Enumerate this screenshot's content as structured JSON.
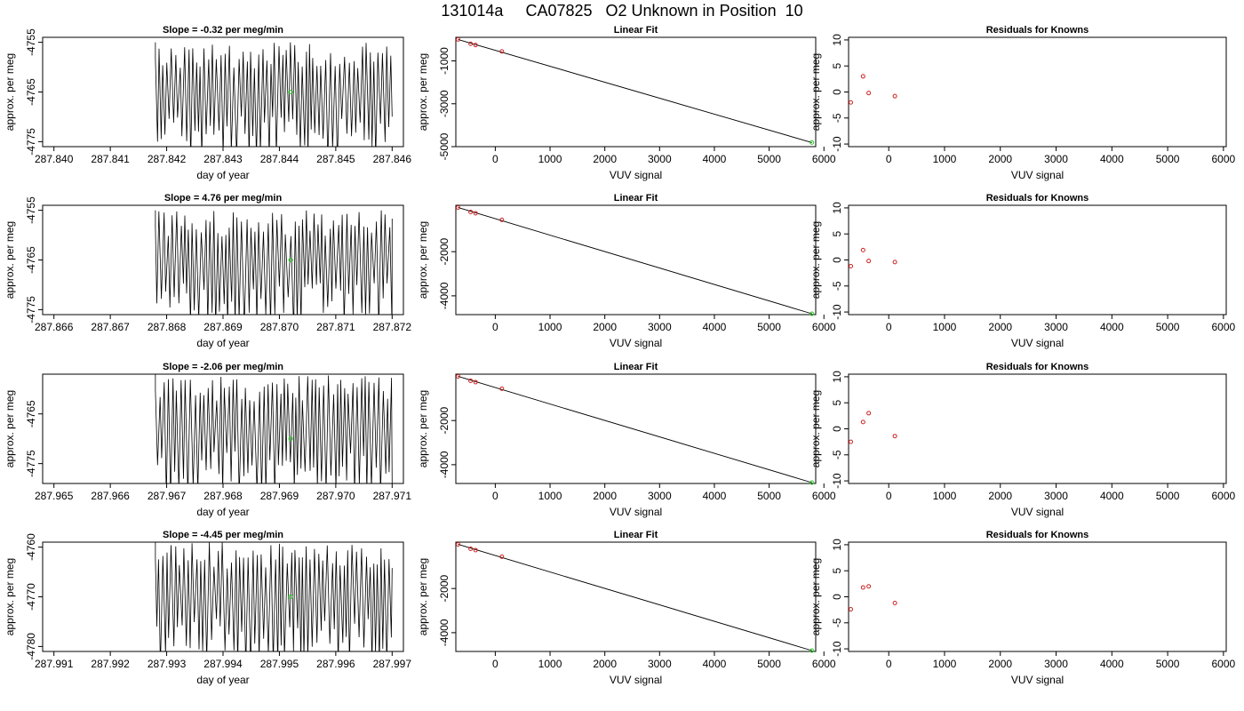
{
  "figure": {
    "title": "131014a     CA07825   O2 Unknown in Position  10"
  },
  "colors": {
    "trace": "#000000",
    "known_points": "#cc2222",
    "unknown_point": "#22cc22",
    "fit_line": "#000000"
  },
  "rows": [
    {
      "time": {
        "title": "Slope =  -0.32  per meg/min",
        "xlabel": "day of year",
        "ylabel": "approx. per meg",
        "xlim": [
          287.8398,
          287.8462
        ],
        "ylim": [
          -4776,
          -4754
        ],
        "xticks": [
          "287.840",
          "287.841",
          "287.842",
          "287.843",
          "287.844",
          "287.845",
          "287.846"
        ],
        "yticks": [
          "-4755",
          "-4765",
          "-4775"
        ],
        "trace_start": 287.8418,
        "trace_end": 287.846,
        "trace_high": -4755,
        "trace_low": -4776,
        "unknown_point": {
          "x": 287.8442,
          "y": -4765
        }
      },
      "fit": {
        "title": "Linear Fit",
        "xlabel": "VUV signal",
        "ylabel": "approx. per meg",
        "xlim": [
          -720,
          5850
        ],
        "ylim": [
          -5000,
          100
        ],
        "xticks": [
          "0",
          "1000",
          "2000",
          "3000",
          "4000",
          "5000",
          "6000"
        ],
        "yticks": [
          "-1000",
          "-3000",
          "-5000"
        ],
        "known_points": [
          {
            "x": -680,
            "y": 0
          },
          {
            "x": -450,
            "y": -200
          },
          {
            "x": -360,
            "y": -260
          },
          {
            "x": 120,
            "y": -560
          }
        ],
        "unknown_point": {
          "x": 5780,
          "y": -4810
        },
        "line": [
          {
            "x": -680,
            "y": 0
          },
          {
            "x": 5780,
            "y": -4810
          }
        ]
      },
      "residuals": {
        "title": "Residuals for Knowns",
        "xlabel": "VUV signal",
        "ylabel": "approx. per meg",
        "xlim": [
          -720,
          6050
        ],
        "ylim": [
          -10.5,
          10.5
        ],
        "xticks": [
          "0",
          "1000",
          "2000",
          "3000",
          "4000",
          "5000",
          "6000"
        ],
        "yticks": [
          "-10",
          "-5",
          "0",
          "5",
          "10"
        ],
        "points": [
          {
            "x": -680,
            "y": -2.0
          },
          {
            "x": -460,
            "y": 3.0
          },
          {
            "x": -360,
            "y": -0.2
          },
          {
            "x": 110,
            "y": -0.8
          }
        ]
      }
    },
    {
      "time": {
        "title": "Slope =  4.76  per meg/min",
        "xlabel": "day of year",
        "ylabel": "approx. per meg",
        "xlim": [
          287.8658,
          287.8722
        ],
        "ylim": [
          -4776,
          -4754
        ],
        "xticks": [
          "287.866",
          "287.867",
          "287.868",
          "287.869",
          "287.870",
          "287.871",
          "287.872"
        ],
        "yticks": [
          "-4755",
          "-4765",
          "-4775"
        ],
        "trace_start": 287.8678,
        "trace_end": 287.872,
        "trace_high": -4755,
        "trace_low": -4776,
        "unknown_point": {
          "x": 287.8702,
          "y": -4765
        }
      },
      "fit": {
        "title": "Linear Fit",
        "xlabel": "VUV signal",
        "ylabel": "approx. per meg",
        "xlim": [
          -720,
          5850
        ],
        "ylim": [
          -4850,
          100
        ],
        "xticks": [
          "0",
          "1000",
          "2000",
          "3000",
          "4000",
          "5000",
          "6000"
        ],
        "yticks": [
          "-2000",
          "-4000"
        ],
        "known_points": [
          {
            "x": -680,
            "y": 0
          },
          {
            "x": -450,
            "y": -200
          },
          {
            "x": -360,
            "y": -260
          },
          {
            "x": 120,
            "y": -560
          }
        ],
        "unknown_point": {
          "x": 5780,
          "y": -4810
        },
        "line": [
          {
            "x": -680,
            "y": 0
          },
          {
            "x": 5780,
            "y": -4810
          }
        ]
      },
      "residuals": {
        "title": "Residuals for Knowns",
        "xlabel": "VUV signal",
        "ylabel": "approx. per meg",
        "xlim": [
          -720,
          6050
        ],
        "ylim": [
          -10.5,
          10.5
        ],
        "xticks": [
          "0",
          "1000",
          "2000",
          "3000",
          "4000",
          "5000",
          "6000"
        ],
        "yticks": [
          "-10",
          "-5",
          "0",
          "5",
          "10"
        ],
        "points": [
          {
            "x": -680,
            "y": -1.2
          },
          {
            "x": -460,
            "y": 1.9
          },
          {
            "x": -360,
            "y": -0.2
          },
          {
            "x": 110,
            "y": -0.4
          }
        ]
      }
    },
    {
      "time": {
        "title": "Slope =  -2.06  per meg/min",
        "xlabel": "day of year",
        "ylabel": "approx. per meg",
        "xlim": [
          287.9648,
          287.9712
        ],
        "ylim": [
          -4779,
          -4757
        ],
        "xticks": [
          "287.965",
          "287.966",
          "287.967",
          "287.968",
          "287.969",
          "287.970",
          "287.971"
        ],
        "yticks": [
          "-4765",
          "-4775"
        ],
        "trace_start": 287.9668,
        "trace_end": 287.971,
        "trace_high": -4757,
        "trace_low": -4779,
        "unknown_point": {
          "x": 287.9692,
          "y": -4770
        }
      },
      "fit": {
        "title": "Linear Fit",
        "xlabel": "VUV signal",
        "ylabel": "approx. per meg",
        "xlim": [
          -720,
          5850
        ],
        "ylim": [
          -4850,
          100
        ],
        "xticks": [
          "0",
          "1000",
          "2000",
          "3000",
          "4000",
          "5000",
          "6000"
        ],
        "yticks": [
          "-2000",
          "-4000"
        ],
        "known_points": [
          {
            "x": -680,
            "y": 0
          },
          {
            "x": -450,
            "y": -200
          },
          {
            "x": -360,
            "y": -260
          },
          {
            "x": 120,
            "y": -560
          }
        ],
        "unknown_point": {
          "x": 5780,
          "y": -4810
        },
        "line": [
          {
            "x": -680,
            "y": 0
          },
          {
            "x": 5780,
            "y": -4810
          }
        ]
      },
      "residuals": {
        "title": "Residuals for Knowns",
        "xlabel": "VUV signal",
        "ylabel": "approx. per meg",
        "xlim": [
          -720,
          6050
        ],
        "ylim": [
          -10.5,
          10.5
        ],
        "xticks": [
          "0",
          "1000",
          "2000",
          "3000",
          "4000",
          "5000",
          "6000"
        ],
        "yticks": [
          "-10",
          "-5",
          "0",
          "5",
          "10"
        ],
        "points": [
          {
            "x": -680,
            "y": -2.5
          },
          {
            "x": -460,
            "y": 1.3
          },
          {
            "x": -360,
            "y": 3.0
          },
          {
            "x": 110,
            "y": -1.4
          }
        ]
      }
    },
    {
      "time": {
        "title": "Slope =  -4.45  per meg/min",
        "xlabel": "day of year",
        "ylabel": "approx. per meg",
        "xlim": [
          287.9908,
          287.9972
        ],
        "ylim": [
          -4781,
          -4759
        ],
        "xticks": [
          "287.991",
          "287.992",
          "287.993",
          "287.994",
          "287.995",
          "287.996",
          "287.997"
        ],
        "yticks": [
          "-4760",
          "-4770",
          "-4780"
        ],
        "trace_start": 287.9928,
        "trace_end": 287.997,
        "trace_high": -4759,
        "trace_low": -4781,
        "unknown_point": {
          "x": 287.9952,
          "y": -4770
        }
      },
      "fit": {
        "title": "Linear Fit",
        "xlabel": "VUV signal",
        "ylabel": "approx. per meg",
        "xlim": [
          -720,
          5850
        ],
        "ylim": [
          -4850,
          100
        ],
        "xticks": [
          "0",
          "1000",
          "2000",
          "3000",
          "4000",
          "5000",
          "6000"
        ],
        "yticks": [
          "-2000",
          "-4000"
        ],
        "known_points": [
          {
            "x": -680,
            "y": 0
          },
          {
            "x": -450,
            "y": -200
          },
          {
            "x": -360,
            "y": -260
          },
          {
            "x": 120,
            "y": -560
          }
        ],
        "unknown_point": {
          "x": 5780,
          "y": -4810
        },
        "line": [
          {
            "x": -680,
            "y": 0
          },
          {
            "x": 5780,
            "y": -4810
          }
        ]
      },
      "residuals": {
        "title": "Residuals for Knowns",
        "xlabel": "VUV signal",
        "ylabel": "approx. per meg",
        "xlim": [
          -720,
          6050
        ],
        "ylim": [
          -10.5,
          10.5
        ],
        "xticks": [
          "0",
          "1000",
          "2000",
          "3000",
          "4000",
          "5000",
          "6000"
        ],
        "yticks": [
          "-10",
          "-5",
          "0",
          "5",
          "10"
        ],
        "points": [
          {
            "x": -680,
            "y": -2.4
          },
          {
            "x": -460,
            "y": 1.8
          },
          {
            "x": -360,
            "y": 2.0
          },
          {
            "x": 110,
            "y": -1.2
          }
        ]
      }
    }
  ],
  "chart_data": [
    {
      "type": "line",
      "title": "Slope =  -0.32  per meg/min",
      "xlabel": "day of year",
      "ylabel": "approx. per meg",
      "xlim": [
        287.8398,
        287.8462
      ],
      "ylim": [
        -4776,
        -4754
      ]
    },
    {
      "type": "scatter",
      "title": "Linear Fit",
      "xlabel": "VUV signal",
      "ylabel": "approx. per meg",
      "x": [
        -680,
        -450,
        -360,
        120,
        5780
      ],
      "y": [
        0,
        -200,
        -260,
        -560,
        -4810
      ]
    },
    {
      "type": "scatter",
      "title": "Residuals for Knowns",
      "xlabel": "VUV signal",
      "ylabel": "approx. per meg",
      "x": [
        -680,
        -460,
        -360,
        110
      ],
      "y": [
        -2.0,
        3.0,
        -0.2,
        -0.8
      ],
      "ylim": [
        -10.5,
        10.5
      ]
    },
    {
      "type": "line",
      "title": "Slope =  4.76  per meg/min",
      "xlabel": "day of year",
      "ylabel": "approx. per meg",
      "xlim": [
        287.8658,
        287.8722
      ],
      "ylim": [
        -4776,
        -4754
      ]
    },
    {
      "type": "scatter",
      "title": "Linear Fit",
      "xlabel": "VUV signal",
      "ylabel": "approx. per meg",
      "x": [
        -680,
        -450,
        -360,
        120,
        5780
      ],
      "y": [
        0,
        -200,
        -260,
        -560,
        -4810
      ]
    },
    {
      "type": "scatter",
      "title": "Residuals for Knowns",
      "xlabel": "VUV signal",
      "ylabel": "approx. per meg",
      "x": [
        -680,
        -460,
        -360,
        110
      ],
      "y": [
        -1.2,
        1.9,
        -0.2,
        -0.4
      ],
      "ylim": [
        -10.5,
        10.5
      ]
    },
    {
      "type": "line",
      "title": "Slope =  -2.06  per meg/min",
      "xlabel": "day of year",
      "ylabel": "approx. per meg",
      "xlim": [
        287.9648,
        287.9712
      ],
      "ylim": [
        -4779,
        -4757
      ]
    },
    {
      "type": "scatter",
      "title": "Linear Fit",
      "xlabel": "VUV signal",
      "ylabel": "approx. per meg",
      "x": [
        -680,
        -450,
        -360,
        120,
        5780
      ],
      "y": [
        0,
        -200,
        -260,
        -560,
        -4810
      ]
    },
    {
      "type": "scatter",
      "title": "Residuals for Knowns",
      "xlabel": "VUV signal",
      "ylabel": "approx. per meg",
      "x": [
        -680,
        -460,
        -360,
        110
      ],
      "y": [
        -2.5,
        1.3,
        3.0,
        -1.4
      ],
      "ylim": [
        -10.5,
        10.5
      ]
    },
    {
      "type": "line",
      "title": "Slope =  -4.45  per meg/min",
      "xlabel": "day of year",
      "ylabel": "approx. per meg",
      "xlim": [
        287.9908,
        287.9972
      ],
      "ylim": [
        -4781,
        -4759
      ]
    },
    {
      "type": "scatter",
      "title": "Linear Fit",
      "xlabel": "VUV signal",
      "ylabel": "approx. per meg",
      "x": [
        -680,
        -450,
        -360,
        120,
        5780
      ],
      "y": [
        0,
        -200,
        -260,
        -560,
        -4810
      ]
    },
    {
      "type": "scatter",
      "title": "Residuals for Knowns",
      "xlabel": "VUV signal",
      "ylabel": "approx. per meg",
      "x": [
        -680,
        -460,
        -360,
        110
      ],
      "y": [
        -2.4,
        1.8,
        2.0,
        -1.2
      ],
      "ylim": [
        -10.5,
        10.5
      ]
    }
  ]
}
